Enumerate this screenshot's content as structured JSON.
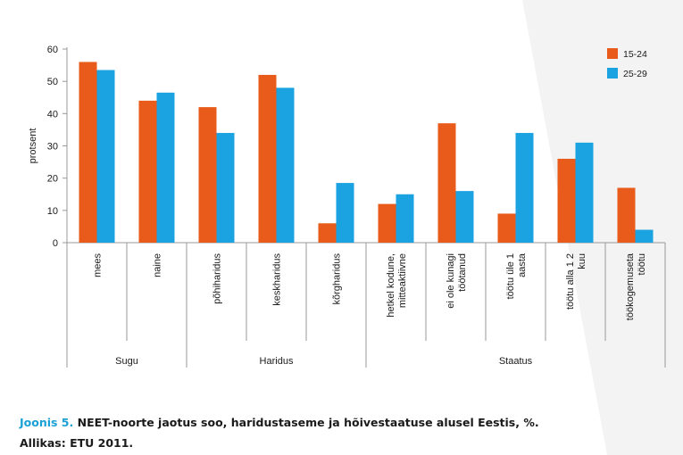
{
  "colors": {
    "series_1": "#e85b1a",
    "series_2": "#1aa3e0",
    "axis": "#9a9a9a",
    "text": "#1a1a1a",
    "background_band": "#f2f2f2",
    "caption_accent": "#1aa0d6"
  },
  "chart_data": {
    "type": "bar",
    "title": "",
    "ylabel": "protsent",
    "xlabel": "",
    "ylim": [
      0,
      60
    ],
    "yticks": [
      0,
      10,
      20,
      30,
      40,
      50,
      60
    ],
    "grid": false,
    "legend_position": "top-right",
    "categories": [
      "mees",
      "naine",
      "põhiharidus",
      "keskharidus",
      "kõrgharidus",
      "hetkel kodune, mitteaktiivne",
      "ei ole kunagi töötanud",
      "töötu üle 1 aasta",
      "töötu alla 1 2 kuu",
      "töökogemuseta töötu"
    ],
    "category_lines": [
      [
        "mees"
      ],
      [
        "naine"
      ],
      [
        "põhiharidus"
      ],
      [
        "keskharidus"
      ],
      [
        "kõrgharidus"
      ],
      [
        "hetkel kodune,",
        "mitteaktiivne"
      ],
      [
        "ei ole kunagi",
        "töötanud"
      ],
      [
        "töötu üle 1",
        "aasta"
      ],
      [
        "töötu alla 1 2",
        "kuu"
      ],
      [
        "töökogemuseta",
        "töötu"
      ]
    ],
    "groups": [
      {
        "name": "Sugu",
        "start": 0,
        "end": 1
      },
      {
        "name": "Haridus",
        "start": 2,
        "end": 4
      },
      {
        "name": "Staatus",
        "start": 5,
        "end": 9
      }
    ],
    "series": [
      {
        "name": "15-24",
        "values": [
          56,
          44,
          42,
          52,
          6,
          12,
          37,
          9,
          26,
          17
        ]
      },
      {
        "name": "25-29",
        "values": [
          53.5,
          46.5,
          34,
          48,
          18.5,
          15,
          16,
          34,
          31,
          4
        ]
      }
    ]
  },
  "caption": {
    "lead": "Joonis 5.",
    "text": " NEET-noorte jaotus soo, haridustaseme ja hõivestaatuse alusel Eestis, %.",
    "source": "Allikas: ETU 2011."
  }
}
